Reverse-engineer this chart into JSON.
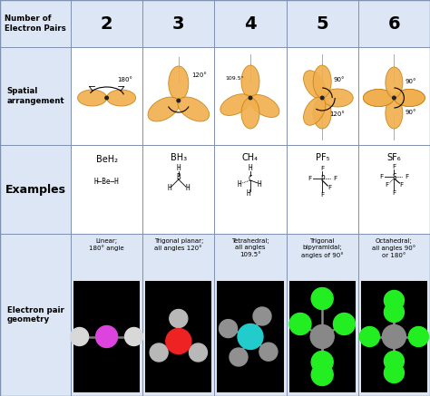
{
  "row_labels": [
    "Number of\nElectron Pairs",
    "Spatial\narrangement",
    "Examples",
    "Electron pair\ngeometry"
  ],
  "col_headers": [
    "2",
    "3",
    "4",
    "5",
    "6"
  ],
  "geometry_labels": [
    "Linear;\n180° angle",
    "Trigonal planar;\nall angles 120°",
    "Tetrahedral;\nall angles\n109.5°",
    "Trigonal\nbipyramidal;\nangles of 90°",
    "Octahedral;\nall angles 90°\nor 180°"
  ],
  "bg_color_header": "#dce6f5",
  "bg_color_white": "#ffffff",
  "border_color": "#8090b0",
  "orbital_color": "#f0b050",
  "orbital_edge": "#c88010",
  "orbital_alpha": 0.92
}
